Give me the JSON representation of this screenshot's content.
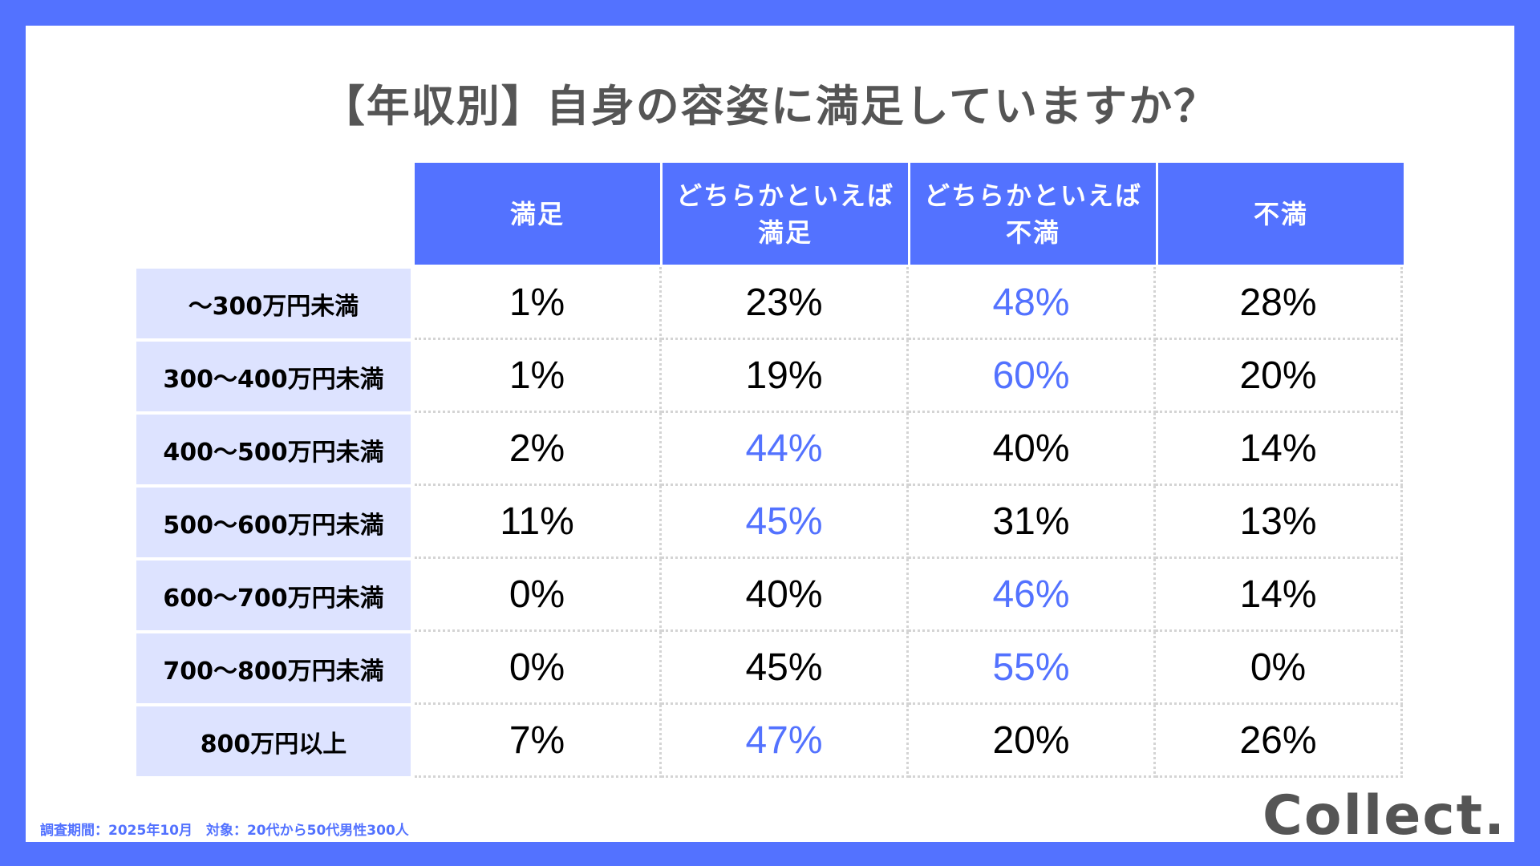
{
  "title": "【年収別】自身の容姿に満足していますか？",
  "table": {
    "headers": [
      "満足",
      "どちらかといえば\n満足",
      "どちらかといえば\n不満",
      "不満"
    ],
    "rows": [
      {
        "label": "〜300万円未満",
        "values": [
          "1%",
          "23%",
          "48%",
          "28%"
        ],
        "highlight": 2
      },
      {
        "label": "300〜400万円未満",
        "values": [
          "1%",
          "19%",
          "60%",
          "20%"
        ],
        "highlight": 2
      },
      {
        "label": "400〜500万円未満",
        "values": [
          "2%",
          "44%",
          "40%",
          "14%"
        ],
        "highlight": 1
      },
      {
        "label": "500〜600万円未満",
        "values": [
          "11%",
          "45%",
          "31%",
          "13%"
        ],
        "highlight": 1
      },
      {
        "label": "600〜700万円未満",
        "values": [
          "0%",
          "40%",
          "46%",
          "14%"
        ],
        "highlight": 2
      },
      {
        "label": "700〜800万円未満",
        "values": [
          "0%",
          "45%",
          "55%",
          "0%"
        ],
        "highlight": 2
      },
      {
        "label": "800万円以上",
        "values": [
          "7%",
          "47%",
          "20%",
          "26%"
        ],
        "highlight": 1
      }
    ]
  },
  "footer": {
    "note": "調査期間：2025年10月　対象：20代から50代男性300人",
    "logo": "Collect."
  },
  "colors": {
    "accent": "#5372FF",
    "row_label_bg": "#DDE3FF",
    "title": "#555555",
    "text": "#000000"
  },
  "chart_data": {
    "type": "table",
    "title": "【年収別】自身の容姿に満足していますか？",
    "columns": [
      "満足",
      "どちらかといえば満足",
      "どちらかといえば不満",
      "不満"
    ],
    "categories": [
      "〜300万円未満",
      "300〜400万円未満",
      "400〜500万円未満",
      "500〜600万円未満",
      "600〜700万円未満",
      "700〜800万円未満",
      "800万円以上"
    ],
    "series": [
      {
        "name": "満足",
        "values": [
          1,
          1,
          2,
          11,
          0,
          0,
          7
        ]
      },
      {
        "name": "どちらかといえば満足",
        "values": [
          23,
          19,
          44,
          45,
          40,
          45,
          47
        ]
      },
      {
        "name": "どちらかといえば不満",
        "values": [
          48,
          60,
          40,
          31,
          46,
          55,
          20
        ]
      },
      {
        "name": "不満",
        "values": [
          28,
          20,
          14,
          13,
          14,
          0,
          26
        ]
      }
    ],
    "unit": "%",
    "highlight": "max value in each row shown in accent blue",
    "note": "調査期間：2025年10月　対象：20代から50代男性300人"
  }
}
